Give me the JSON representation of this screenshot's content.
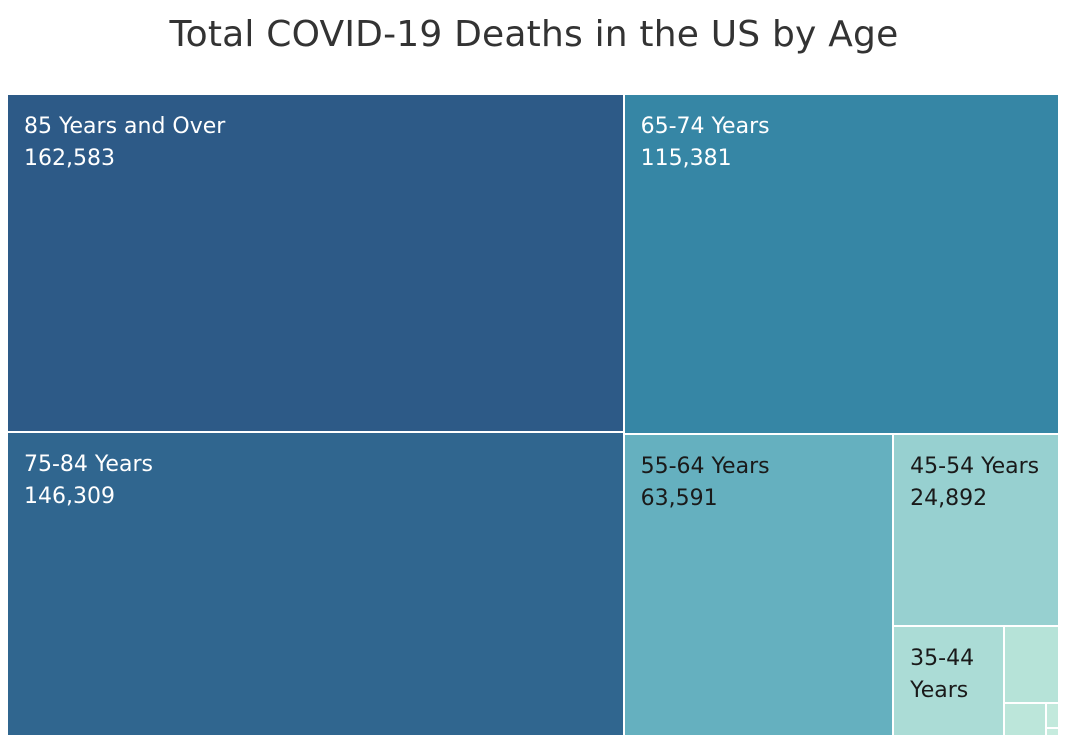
{
  "chart_data": {
    "type": "treemap",
    "title": "Total COVID-19 Deaths in the US by Age",
    "items": [
      {
        "name": "85 Years and Over",
        "value": 162583,
        "value_label": "162,583",
        "color": "#2d5a87",
        "text_color": "#ffffff"
      },
      {
        "name": "75-84 Years",
        "value": 146309,
        "value_label": "146,309",
        "color": "#30668f",
        "text_color": "#ffffff"
      },
      {
        "name": "65-74 Years",
        "value": 115381,
        "value_label": "115,381",
        "color": "#3686a5",
        "text_color": "#ffffff"
      },
      {
        "name": "55-64 Years",
        "value": 63591,
        "value_label": "63,591",
        "color": "#65b0bf",
        "text_color": "#1a1a1a"
      },
      {
        "name": "45-54 Years",
        "value": 24892,
        "value_label": "24,892",
        "color": "#97d0d0",
        "text_color": "#1a1a1a"
      },
      {
        "name": "35-44 Years",
        "value": 9500,
        "value_label": "",
        "color": "#abdcd6",
        "text_color": "#1a1a1a"
      },
      {
        "name": "",
        "value": 3300,
        "value_label": "",
        "color": "#b6e3d8",
        "text_color": "#1a1a1a"
      },
      {
        "name": "",
        "value": 1100,
        "value_label": "",
        "color": "#bce6da",
        "text_color": "#1a1a1a"
      },
      {
        "name": "",
        "value": 250,
        "value_label": "",
        "color": "#c2e9dc",
        "text_color": "#1a1a1a"
      },
      {
        "name": "",
        "value": 80,
        "value_label": "",
        "color": "#c6ebde",
        "text_color": "#1a1a1a"
      }
    ]
  }
}
